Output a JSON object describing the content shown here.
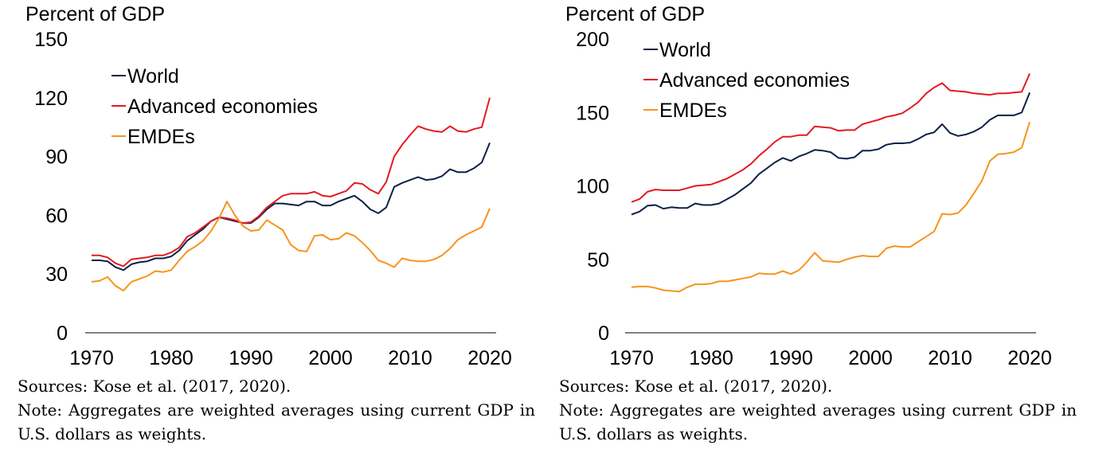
{
  "chart_data": [
    {
      "type": "line",
      "unit_label": "Percent of GDP",
      "ylim": [
        0,
        150
      ],
      "yticks": [
        0,
        30,
        60,
        90,
        120,
        150
      ],
      "xlim": [
        1970,
        2020
      ],
      "xticks": [
        1970,
        1980,
        1990,
        2000,
        2010,
        2020
      ],
      "grid": false,
      "legend_position": "top-left",
      "x": [
        1970,
        1971,
        1972,
        1973,
        1974,
        1975,
        1976,
        1977,
        1978,
        1979,
        1980,
        1981,
        1982,
        1983,
        1984,
        1985,
        1986,
        1987,
        1988,
        1989,
        1990,
        1991,
        1992,
        1993,
        1994,
        1995,
        1996,
        1997,
        1998,
        1999,
        2000,
        2001,
        2002,
        2003,
        2004,
        2005,
        2006,
        2007,
        2008,
        2009,
        2010,
        2011,
        2012,
        2013,
        2014,
        2015,
        2016,
        2017,
        2018,
        2019,
        2020
      ],
      "series": [
        {
          "name": "World",
          "color": "#0d2146",
          "values": [
            37,
            37,
            36.5,
            33.5,
            32,
            35,
            36,
            36.5,
            38,
            38,
            39,
            42,
            47,
            50,
            53,
            57,
            59,
            58,
            57,
            56,
            56,
            59,
            63,
            66,
            66,
            65.5,
            65,
            67,
            67,
            65,
            65,
            67,
            68.5,
            70,
            67,
            63,
            61,
            64,
            74.5,
            76.5,
            78,
            79.5,
            78,
            78.5,
            80,
            83.5,
            82,
            82,
            84,
            87,
            97
          ]
        },
        {
          "name": "Advanced economies",
          "color": "#e31b23",
          "values": [
            39.5,
            39.5,
            38.5,
            35.5,
            34,
            37.5,
            38,
            38.5,
            39.5,
            39.5,
            41,
            43.5,
            49,
            51,
            54,
            57,
            59,
            58.5,
            57.5,
            56,
            56.5,
            59.5,
            64,
            67,
            70,
            71,
            71,
            71,
            72,
            70,
            69.5,
            71,
            72.5,
            76.5,
            76,
            73,
            71,
            77,
            90,
            96,
            101,
            105.5,
            104,
            103,
            102.5,
            105.5,
            103,
            102.5,
            104,
            105,
            120
          ]
        },
        {
          "name": "EMDEs",
          "color": "#f7941d",
          "values": [
            26,
            26.5,
            28.5,
            24,
            21.5,
            26,
            27.5,
            29,
            31.5,
            31,
            32,
            37,
            41.5,
            44,
            47,
            52,
            58.5,
            67,
            60,
            54.5,
            52,
            52.5,
            57.5,
            55,
            52.5,
            45,
            42,
            41.5,
            49.5,
            50,
            47.5,
            48,
            51,
            49.5,
            46,
            42,
            37,
            35.5,
            33.5,
            38,
            37,
            36.5,
            36.5,
            37.5,
            39.5,
            43,
            47.5,
            50,
            52,
            54,
            63.5
          ]
        }
      ]
    },
    {
      "type": "line",
      "unit_label": "Percent of GDP",
      "ylim": [
        0,
        200
      ],
      "yticks": [
        0,
        50,
        100,
        150,
        200
      ],
      "xlim": [
        1970,
        2020
      ],
      "xticks": [
        1970,
        1980,
        1990,
        2000,
        2010,
        2020
      ],
      "grid": false,
      "legend_position": "top-left",
      "x": [
        1970,
        1971,
        1972,
        1973,
        1974,
        1975,
        1976,
        1977,
        1978,
        1979,
        1980,
        1981,
        1982,
        1983,
        1984,
        1985,
        1986,
        1987,
        1988,
        1989,
        1990,
        1991,
        1992,
        1993,
        1994,
        1995,
        1996,
        1997,
        1998,
        1999,
        2000,
        2001,
        2002,
        2003,
        2004,
        2005,
        2006,
        2007,
        2008,
        2009,
        2010,
        2011,
        2012,
        2013,
        2014,
        2015,
        2016,
        2017,
        2018,
        2019,
        2020
      ],
      "series": [
        {
          "name": "World",
          "color": "#0d2146",
          "values": [
            80.5,
            82.5,
            86.5,
            87,
            84.5,
            85.5,
            85,
            85,
            88,
            87,
            87,
            88,
            91,
            94,
            98,
            102,
            108,
            112,
            116,
            119,
            117,
            120,
            122,
            124.5,
            124,
            123,
            119,
            118.5,
            119.5,
            124,
            124,
            125,
            128,
            129,
            129,
            129.5,
            132,
            135,
            136.5,
            142,
            136,
            134,
            135,
            137,
            140,
            145,
            148,
            148,
            148,
            150,
            163.5
          ]
        },
        {
          "name": "Advanced economies",
          "color": "#e31b23",
          "values": [
            89,
            91,
            96,
            97.5,
            97,
            97,
            97,
            98.5,
            100,
            100.5,
            101,
            103,
            105,
            108,
            111,
            115,
            120.5,
            125,
            130,
            133.5,
            133.5,
            134.5,
            134.5,
            140.5,
            140,
            139.5,
            137.5,
            138,
            138,
            142,
            143.5,
            145,
            147,
            148,
            149.5,
            153,
            157,
            163,
            167,
            170,
            165,
            164.5,
            164,
            163,
            162.5,
            162,
            163,
            163,
            163.5,
            164,
            176.5
          ]
        },
        {
          "name": "EMDEs",
          "color": "#f7941d",
          "values": [
            31,
            31.5,
            31.5,
            30.5,
            29,
            28.5,
            28,
            31,
            33,
            33,
            33.5,
            35,
            35,
            36,
            37,
            38,
            40.5,
            40,
            40,
            42,
            40,
            42.5,
            48,
            54.5,
            49,
            48.5,
            48,
            50,
            51.5,
            52.5,
            52,
            52,
            57.5,
            59,
            58.5,
            58.5,
            62,
            65.5,
            69,
            81,
            80.5,
            81.5,
            87,
            95,
            103.5,
            117,
            121.5,
            122,
            123,
            126,
            143.5
          ]
        }
      ]
    }
  ],
  "notes": [
    {
      "source": "Sources: Kose et al. (2017, 2020).",
      "note": "Note: Aggregates are weighted averages using current GDP in U.S. dollars as weights."
    },
    {
      "source": "Sources: Kose et al. (2017, 2020).",
      "note": "Note: Aggregates are weighted averages using current GDP in U.S. dollars as weights."
    }
  ]
}
